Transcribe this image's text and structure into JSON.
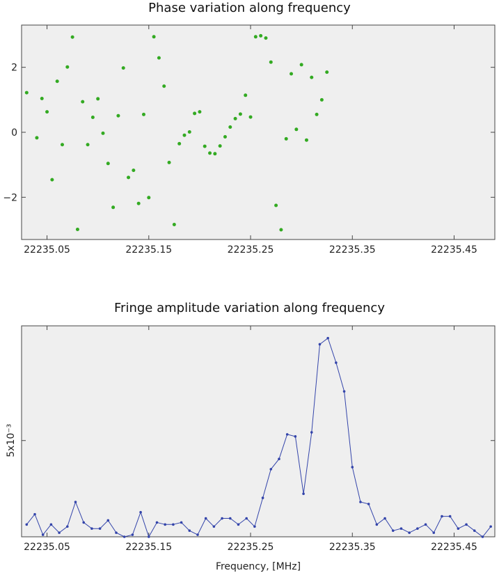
{
  "chart_data": [
    {
      "type": "scatter",
      "title": "Phase variation along frequency",
      "xlabel": "",
      "ylabel": "",
      "xlim": [
        22235.025,
        22235.49
      ],
      "ylim": [
        -3.3,
        3.3
      ],
      "xticks": [
        22235.05,
        22235.15,
        22235.25,
        22235.35,
        22235.45
      ],
      "xtick_labels": [
        "22235.05",
        "22235.15",
        "22235.25",
        "22235.35",
        "22235.45"
      ],
      "yticks": [
        -2,
        0,
        2
      ],
      "ytick_labels": [
        "−2",
        "0",
        "2"
      ],
      "grid": false,
      "color": "#33aa22",
      "x": [
        22235.03,
        22235.04,
        22235.045,
        22235.05,
        22235.055,
        22235.06,
        22235.065,
        22235.07,
        22235.075,
        22235.08,
        22235.085,
        22235.09,
        22235.095,
        22235.1,
        22235.105,
        22235.11,
        22235.115,
        22235.12,
        22235.125,
        22235.13,
        22235.135,
        22235.14,
        22235.145,
        22235.15,
        22235.155,
        22235.16,
        22235.165,
        22235.17,
        22235.175,
        22235.18,
        22235.185,
        22235.19,
        22235.195,
        22235.2,
        22235.205,
        22235.21,
        22235.215,
        22235.22,
        22235.225,
        22235.23,
        22235.235,
        22235.24,
        22235.245,
        22235.25,
        22235.255,
        22235.26,
        22235.265,
        22235.27,
        22235.275,
        22235.28,
        22235.285,
        22235.29,
        22235.295,
        22235.3,
        22235.305,
        22235.31,
        22235.315,
        22235.32,
        22235.325,
        22235.33,
        22235.335,
        22235.34,
        22235.345,
        22235.35,
        22235.355,
        22235.36,
        22235.365,
        22235.37,
        22235.375,
        22235.38,
        22235.385,
        22235.39,
        22235.395,
        22235.4,
        22235.405,
        22235.41,
        22235.415,
        22235.42,
        22235.425,
        22235.43,
        22235.435,
        22235.44,
        22235.445,
        22235.45,
        22235.455,
        22235.46,
        22235.465,
        22235.47
      ],
      "y": [
        1.22,
        -0.17,
        1.04,
        0.63,
        -1.46,
        1.57,
        -0.38,
        2.01,
        2.93,
        -2.99,
        0.94,
        -0.38,
        0.46,
        1.03,
        -0.03,
        -0.96,
        -2.31,
        0.51,
        1.98,
        -1.39,
        -1.17,
        -2.19,
        0.55,
        -2.01,
        2.94,
        2.29,
        1.42,
        -0.93,
        -2.84,
        -0.35,
        -0.09,
        0.01,
        0.58,
        0.63,
        -0.43,
        -0.64,
        -0.66,
        -0.42,
        -0.14,
        0.16,
        0.42,
        0.56,
        1.14,
        0.47,
        2.94,
        2.97,
        2.9,
        2.16,
        -2.25,
        -3.0,
        -0.2,
        1.8,
        0.09,
        2.08,
        -0.24,
        1.69,
        0.55,
        1.0,
        1.85,
        null,
        null,
        null,
        null,
        null,
        null,
        null,
        null,
        null,
        null,
        null,
        null,
        null,
        null,
        null,
        null,
        null,
        null,
        null,
        null,
        null,
        null,
        null,
        null,
        null,
        null,
        null,
        null,
        null
      ]
    },
    {
      "type": "line",
      "title": "Fringe amplitude variation along frequency",
      "xlabel": "Frequency, [MHz]",
      "ylabel": "",
      "xlim": [
        22235.025,
        22235.49
      ],
      "ylim": [
        0.0003,
        0.0106
      ],
      "xticks": [
        22235.05,
        22235.15,
        22235.25,
        22235.35,
        22235.45
      ],
      "xtick_labels": [
        "22235.05",
        "22235.15",
        "22235.25",
        "22235.35",
        "22235.45"
      ],
      "yticks": [
        0.005
      ],
      "ytick_labels": [
        "5x10⁻³"
      ],
      "grid": false,
      "color": "#3344aa",
      "x": [
        22235.03,
        22235.038,
        22235.046,
        22235.054,
        22235.062,
        22235.07,
        22235.078,
        22235.086,
        22235.094,
        22235.102,
        22235.11,
        22235.118,
        22235.126,
        22235.134,
        22235.142,
        22235.15,
        22235.158,
        22235.166,
        22235.174,
        22235.182,
        22235.19,
        22235.198,
        22235.206,
        22235.214,
        22235.222,
        22235.23,
        22235.238,
        22235.246,
        22235.254,
        22235.262,
        22235.27,
        22235.278,
        22235.286,
        22235.294,
        22235.302,
        22235.31,
        22235.318,
        22235.326,
        22235.334,
        22235.342,
        22235.35,
        22235.358,
        22235.366,
        22235.374,
        22235.382,
        22235.39,
        22235.398,
        22235.406,
        22235.414,
        22235.422,
        22235.43,
        22235.438,
        22235.446,
        22235.454,
        22235.462,
        22235.47,
        22235.478,
        22235.486
      ],
      "y": [
        0.0009,
        0.0014,
        0.0004,
        0.0009,
        0.0005,
        0.0008,
        0.002,
        0.001,
        0.0007,
        0.0007,
        0.0011,
        0.0005,
        0.0003,
        0.0004,
        0.0015,
        0.0003,
        0.001,
        0.0009,
        0.0009,
        0.001,
        0.0006,
        0.0004,
        0.0012,
        0.0008,
        0.0012,
        0.0012,
        0.0009,
        0.0012,
        0.0008,
        0.0022,
        0.0036,
        0.0041,
        0.0053,
        0.0052,
        0.0024,
        0.0054,
        0.0097,
        0.01,
        0.0088,
        0.0074,
        0.0037,
        0.002,
        0.0019,
        0.0009,
        0.0012,
        0.0006,
        0.0007,
        0.0005,
        0.0007,
        0.0009,
        0.0005,
        0.0013,
        0.0013,
        0.0007,
        0.0009,
        0.0006,
        0.0003,
        0.0008
      ]
    }
  ]
}
